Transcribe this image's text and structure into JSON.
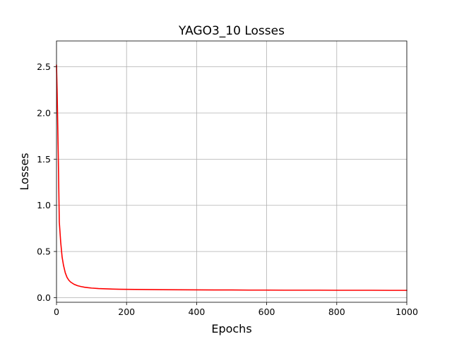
{
  "chart_data": {
    "type": "line",
    "title": "YAGO3_10 Losses",
    "xlabel": "Epochs",
    "ylabel": "Losses",
    "xlim": [
      0,
      1000
    ],
    "ylim": [
      -0.05,
      2.78
    ],
    "xticks": [
      0,
      200,
      400,
      600,
      800,
      1000
    ],
    "yticks": [
      0.0,
      0.5,
      1.0,
      1.5,
      2.0,
      2.5
    ],
    "xtick_labels": [
      "0",
      "200",
      "400",
      "600",
      "800",
      "1000"
    ],
    "ytick_labels": [
      "0.0",
      "0.5",
      "1.0",
      "1.5",
      "2.0",
      "2.5"
    ],
    "grid": true,
    "colors": {
      "series": "#ff0000"
    },
    "series": [
      {
        "x": [
          0,
          2,
          5,
          8,
          12,
          16,
          20,
          25,
          30,
          35,
          40,
          50,
          60,
          70,
          80,
          90,
          100,
          120,
          140,
          160,
          180,
          200,
          250,
          300,
          350,
          400,
          450,
          500,
          550,
          600,
          650,
          700,
          750,
          800,
          850,
          900,
          950,
          1000
        ],
        "values": [
          2.52,
          2.2,
          1.55,
          0.82,
          0.6,
          0.44,
          0.35,
          0.27,
          0.22,
          0.19,
          0.17,
          0.145,
          0.13,
          0.12,
          0.113,
          0.108,
          0.104,
          0.099,
          0.096,
          0.093,
          0.091,
          0.09,
          0.088,
          0.086,
          0.085,
          0.084,
          0.083,
          0.083,
          0.082,
          0.082,
          0.081,
          0.081,
          0.081,
          0.08,
          0.08,
          0.08,
          0.079,
          0.079
        ]
      }
    ]
  }
}
